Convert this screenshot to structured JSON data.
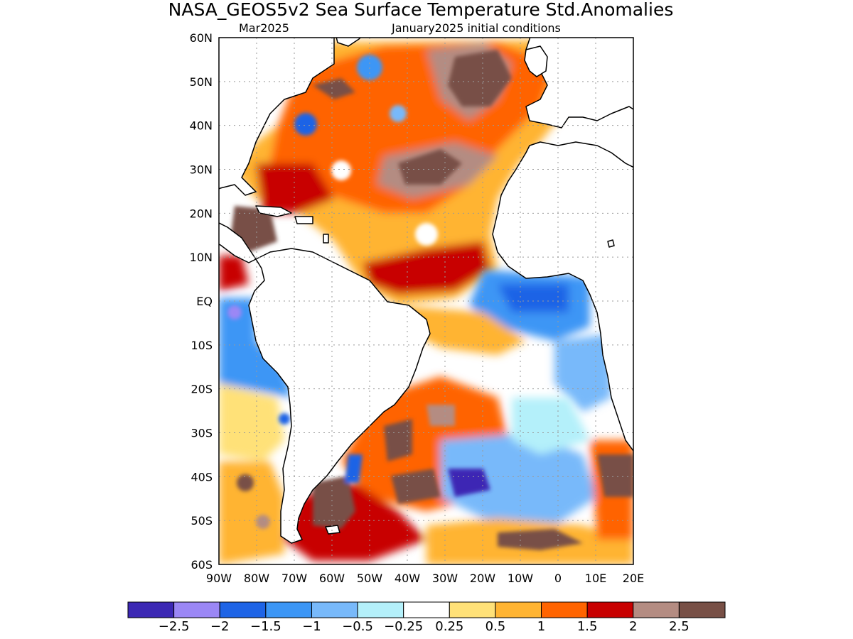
{
  "header": {
    "title": "NASA_GEOS5v2 Sea Surface Temperature Std.Anomalies",
    "left_subtitle": "Mar2025",
    "right_subtitle": "January2025 initial conditions"
  },
  "map": {
    "lat_labels": [
      "60N",
      "50N",
      "40N",
      "30N",
      "20N",
      "10N",
      "EQ",
      "10S",
      "20S",
      "30S",
      "40S",
      "50S",
      "60S"
    ],
    "lon_labels": [
      "90W",
      "80W",
      "70W",
      "60W",
      "50W",
      "40W",
      "30W",
      "20W",
      "10W",
      "0",
      "10E",
      "20E"
    ],
    "lat_range": [
      -60,
      60
    ],
    "lon_range": [
      -90,
      20
    ],
    "grid": "dotted"
  },
  "colorbar": {
    "colors": [
      "#3c28b4",
      "#9b87f5",
      "#1e64e6",
      "#3c96f5",
      "#78b9fa",
      "#b4f0fa",
      "#ffffff",
      "#ffe178",
      "#ffb432",
      "#ff6400",
      "#c80000",
      "#b48c82",
      "#785046"
    ],
    "labels": [
      "−2.5",
      "−2",
      "−1.5",
      "−1",
      "−0.5",
      "−0.25",
      "0.25",
      "0.5",
      "1",
      "1.5",
      "2",
      "2.5"
    ]
  }
}
